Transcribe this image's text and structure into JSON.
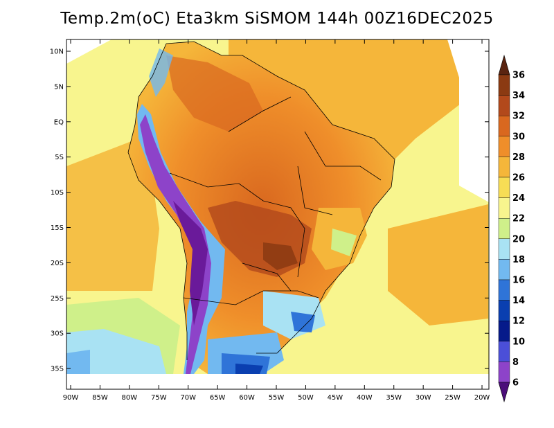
{
  "title": "Temp.2m(oC) Eta3km SiSMOM 144h 00Z16DEC2025",
  "map": {
    "variable": "2 m air temperature",
    "units": "°C",
    "lat_labels": [
      "10N",
      "5N",
      "EQ",
      "5S",
      "10S",
      "15S",
      "20S",
      "25S",
      "30S",
      "35S"
    ],
    "lon_labels": [
      "90W",
      "85W",
      "80W",
      "75W",
      "70W",
      "65W",
      "60W",
      "55W",
      "50W",
      "45W",
      "40W",
      "35W",
      "30W",
      "25W",
      "20W"
    ]
  },
  "colorbar": {
    "labels": [
      "36",
      "34",
      "32",
      "30",
      "28",
      "26",
      "24",
      "22",
      "20",
      "18",
      "16",
      "14",
      "12",
      "10",
      "8",
      "6"
    ],
    "colors": [
      "#6b2b12",
      "#8b3a12",
      "#b2491b",
      "#d9681f",
      "#ef8e2a",
      "#f5b63a",
      "#f7dd55",
      "#f8f58e",
      "#cff08a",
      "#a9e2f3",
      "#72b9f0",
      "#2f74d8",
      "#0a3fb0",
      "#061a8a",
      "#4b4fd8",
      "#8d43c9",
      "#6a1a9a"
    ],
    "top_arrow_color": "#5a2410",
    "bottom_arrow_color": "#4b0d7a"
  }
}
